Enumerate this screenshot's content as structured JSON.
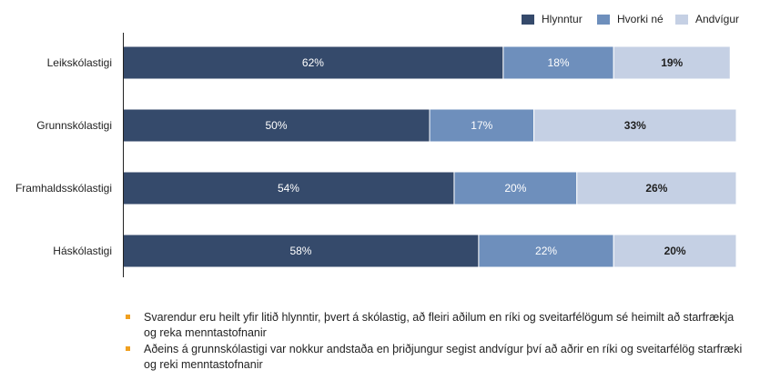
{
  "colors": {
    "Hlynntur": "#354a6b",
    "Hvorki né": "#6e8fbc",
    "Andvígur": "#c5d0e4",
    "bullet": "#f0a020"
  },
  "chart_data": {
    "type": "bar",
    "orientation": "horizontal",
    "stacked": true,
    "categories": [
      "Leikskólastigi",
      "Grunnskólastigi",
      "Framhaldsskólastigi",
      "Háskólastigi"
    ],
    "series": [
      {
        "name": "Hlynntur",
        "values": [
          62,
          50,
          54,
          58
        ],
        "labels": [
          "62%",
          "50%",
          "54%",
          "58%"
        ]
      },
      {
        "name": "Hvorki né",
        "values": [
          18,
          17,
          20,
          22
        ],
        "labels": [
          "18%",
          "17%",
          "20%",
          "22%"
        ]
      },
      {
        "name": "Andvígur",
        "values": [
          19,
          33,
          26,
          20
        ],
        "labels": [
          "19%",
          "33%",
          "26%",
          "20%"
        ]
      }
    ],
    "xlim": [
      0,
      100
    ],
    "grid": false,
    "legend_position": "top-right"
  },
  "notes": [
    "Svarendur eru heilt yfir litið hlynntir, þvert á skólastig, að fleiri aðilum en ríki og sveitarfélögum sé heimilt að starfrækja og reka menntastofnanir",
    "Aðeins á grunnskólastigi var nokkur andstaða en þriðjungur segist andvígur því að aðrir en ríki og sveitarfélög starfræki og reki menntastofnanir"
  ]
}
